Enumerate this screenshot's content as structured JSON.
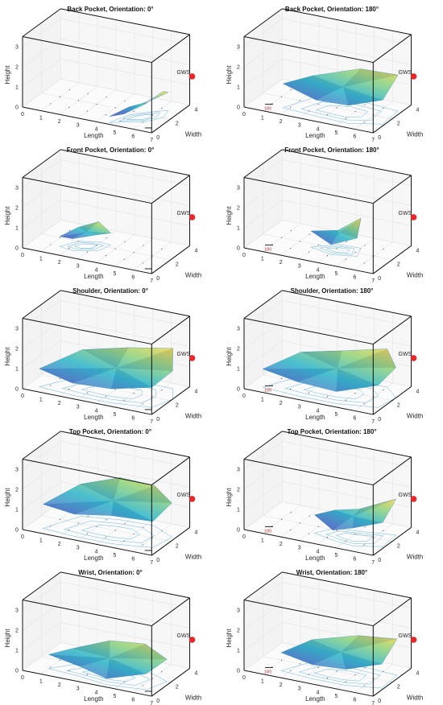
{
  "chart_data": [
    {
      "type": "surface3d",
      "title": "Back Pocket, Orientation: 0°",
      "xlabel": "Length",
      "ylabel": "Width",
      "zlabel": "Height",
      "xlim": [
        0,
        7
      ],
      "ylim": [
        0,
        4
      ],
      "zlim": [
        0,
        3.5
      ],
      "x_ticks": [
        "0",
        "1",
        "2",
        "3",
        "4",
        "5",
        "6",
        "7"
      ],
      "y_ticks": [
        "0",
        "2",
        "4"
      ],
      "z_ticks": [
        "0",
        "1",
        "2",
        "3"
      ],
      "marker": {
        "label": "GWS",
        "x": 7,
        "y": 4,
        "z": 1.5,
        "color": "#e8282b"
      },
      "scale_label": "",
      "surface": [
        {
          "x": 4.6,
          "y": 0.2,
          "z": 0.3
        },
        {
          "x": 5.2,
          "y": 0.6,
          "z": 0.4
        },
        {
          "x": 6.1,
          "y": 1.1,
          "z": 0.9
        },
        {
          "x": 6.6,
          "y": 2.0,
          "z": 1.3
        },
        {
          "x": 6.4,
          "y": 2.9,
          "z": 0.9
        },
        {
          "x": 5.6,
          "y": 2.2,
          "z": 0.5
        },
        {
          "x": 5.0,
          "y": 1.5,
          "z": 0.4
        }
      ]
    },
    {
      "type": "surface3d",
      "title": "Back Pocket, Orientation: 180°",
      "xlabel": "Length",
      "ylabel": "Width",
      "zlabel": "Height",
      "xlim": [
        0,
        7
      ],
      "ylim": [
        0,
        4
      ],
      "zlim": [
        0,
        3.5
      ],
      "x_ticks": [
        "0",
        "1",
        "2",
        "3",
        "4",
        "5",
        "6",
        "7"
      ],
      "y_ticks": [
        "0",
        "2",
        "4"
      ],
      "z_ticks": [
        "0",
        "1",
        "2",
        "3"
      ],
      "marker": {
        "label": "GWS",
        "x": 7,
        "y": 4,
        "z": 1.5,
        "color": "#e8282b"
      },
      "scale_label": "180",
      "surface": [
        {
          "x": 1.7,
          "y": 0.8,
          "z": 1.2
        },
        {
          "x": 3.6,
          "y": 0.6,
          "z": 0.8
        },
        {
          "x": 5.4,
          "y": 0.5,
          "z": 0.9
        },
        {
          "x": 6.9,
          "y": 1.2,
          "z": 1.2
        },
        {
          "x": 6.8,
          "y": 3.0,
          "z": 1.8
        },
        {
          "x": 4.6,
          "y": 3.3,
          "z": 1.6
        },
        {
          "x": 2.4,
          "y": 2.6,
          "z": 1.1
        }
      ]
    },
    {
      "type": "surface3d",
      "title": "Front Pocket, Orientation: 0°",
      "xlabel": "Length",
      "ylabel": "Width",
      "zlabel": "Height",
      "xlim": [
        0,
        7
      ],
      "ylim": [
        0,
        4
      ],
      "zlim": [
        0,
        3.5
      ],
      "x_ticks": [
        "0",
        "1",
        "2",
        "3",
        "4",
        "5",
        "6",
        "7"
      ],
      "y_ticks": [
        "0",
        "2",
        "4"
      ],
      "z_ticks": [
        "0",
        "1",
        "2",
        "3"
      ],
      "marker": {
        "label": "GWS",
        "x": 7,
        "y": 4,
        "z": 1.5,
        "color": "#e8282b"
      },
      "scale_label": "",
      "surface": [
        {
          "x": 1.5,
          "y": 1.0,
          "z": 0.5
        },
        {
          "x": 2.3,
          "y": 0.8,
          "z": 0.6
        },
        {
          "x": 3.4,
          "y": 1.4,
          "z": 0.8
        },
        {
          "x": 3.6,
          "y": 2.3,
          "z": 0.6
        },
        {
          "x": 2.9,
          "y": 2.4,
          "z": 1.0
        },
        {
          "x": 2.0,
          "y": 2.0,
          "z": 0.7
        }
      ]
    },
    {
      "type": "surface3d",
      "title": "Front Pocket, Orientation: 180°",
      "xlabel": "Length",
      "ylabel": "Width",
      "zlabel": "Height",
      "xlim": [
        0,
        7
      ],
      "ylim": [
        0,
        4
      ],
      "zlim": [
        0,
        3.5
      ],
      "x_ticks": [
        "0",
        "1",
        "2",
        "3",
        "4",
        "5",
        "6",
        "7"
      ],
      "y_ticks": [
        "0",
        "2",
        "4"
      ],
      "z_ticks": [
        "0",
        "1",
        "2",
        "3"
      ],
      "marker": {
        "label": "GWS",
        "x": 7,
        "y": 4,
        "z": 1.5,
        "color": "#e8282b"
      },
      "scale_label": "180",
      "surface": [
        {
          "x": 2.8,
          "y": 1.6,
          "z": 0.8
        },
        {
          "x": 4.1,
          "y": 1.2,
          "z": 0.5
        },
        {
          "x": 5.3,
          "y": 1.6,
          "z": 0.9
        },
        {
          "x": 5.0,
          "y": 2.6,
          "z": 1.5
        },
        {
          "x": 3.8,
          "y": 2.5,
          "z": 0.7
        }
      ]
    },
    {
      "type": "surface3d",
      "title": "Shoulder, Orientation: 0°",
      "xlabel": "Length",
      "ylabel": "Width",
      "zlabel": "Height",
      "xlim": [
        0,
        7
      ],
      "ylim": [
        0,
        4
      ],
      "zlim": [
        0,
        3.5
      ],
      "x_ticks": [
        "0",
        "1",
        "2",
        "3",
        "4",
        "5",
        "6",
        "7"
      ],
      "y_ticks": [
        "0",
        "2",
        "4"
      ],
      "z_ticks": [
        "0",
        "1",
        "2",
        "3"
      ],
      "marker": {
        "label": "GWS",
        "x": 7,
        "y": 4,
        "z": 1.5,
        "color": "#e8282b"
      },
      "scale_label": "",
      "surface": [
        {
          "x": 0.6,
          "y": 0.6,
          "z": 0.9
        },
        {
          "x": 2.5,
          "y": 0.4,
          "z": 0.6
        },
        {
          "x": 4.6,
          "y": 0.4,
          "z": 0.7
        },
        {
          "x": 6.6,
          "y": 0.8,
          "z": 1.0
        },
        {
          "x": 7.0,
          "y": 2.2,
          "z": 1.4
        },
        {
          "x": 6.4,
          "y": 3.4,
          "z": 2.0
        },
        {
          "x": 4.0,
          "y": 3.4,
          "z": 1.6
        },
        {
          "x": 1.8,
          "y": 2.8,
          "z": 1.3
        }
      ]
    },
    {
      "type": "surface3d",
      "title": "Shoulder, Orientation: 180°",
      "xlabel": "Length",
      "ylabel": "Width",
      "zlabel": "Height",
      "xlim": [
        0,
        7
      ],
      "ylim": [
        0,
        4
      ],
      "zlim": [
        0,
        3.5
      ],
      "x_ticks": [
        "0",
        "1",
        "2",
        "3",
        "4",
        "5",
        "6",
        "7"
      ],
      "y_ticks": [
        "0",
        "2",
        "4"
      ],
      "z_ticks": [
        "0",
        "1",
        "2",
        "3"
      ],
      "marker": {
        "label": "GWS",
        "x": 7,
        "y": 4,
        "z": 1.5,
        "color": "#e8282b"
      },
      "scale_label": "180",
      "surface": [
        {
          "x": 0.7,
          "y": 0.6,
          "z": 0.9
        },
        {
          "x": 2.7,
          "y": 0.4,
          "z": 0.7
        },
        {
          "x": 4.8,
          "y": 0.4,
          "z": 0.6
        },
        {
          "x": 6.8,
          "y": 0.9,
          "z": 1.1
        },
        {
          "x": 7.0,
          "y": 2.4,
          "z": 1.5
        },
        {
          "x": 6.0,
          "y": 3.4,
          "z": 1.9
        },
        {
          "x": 3.6,
          "y": 3.3,
          "z": 1.4
        },
        {
          "x": 1.7,
          "y": 2.7,
          "z": 1.2
        }
      ]
    },
    {
      "type": "surface3d",
      "title": "Top Pocket, Orientation: 0°",
      "xlabel": "Length",
      "ylabel": "Width",
      "zlabel": "Height",
      "xlim": [
        0,
        7
      ],
      "ylim": [
        0,
        4
      ],
      "zlim": [
        0,
        3.5
      ],
      "x_ticks": [
        "0",
        "1",
        "2",
        "3",
        "4",
        "5",
        "6",
        "7"
      ],
      "y_ticks": [
        "0",
        "2",
        "4"
      ],
      "z_ticks": [
        "0",
        "1",
        "2",
        "3"
      ],
      "marker": {
        "label": "GWS",
        "x": 7,
        "y": 4,
        "z": 1.5,
        "color": "#e8282b"
      },
      "scale_label": "",
      "surface": [
        {
          "x": 0.8,
          "y": 0.6,
          "z": 1.2
        },
        {
          "x": 2.6,
          "y": 0.4,
          "z": 1.1
        },
        {
          "x": 4.6,
          "y": 0.4,
          "z": 1.4
        },
        {
          "x": 6.6,
          "y": 0.9,
          "z": 1.3
        },
        {
          "x": 6.8,
          "y": 2.5,
          "z": 1.7
        },
        {
          "x": 5.4,
          "y": 3.4,
          "z": 2.0
        },
        {
          "x": 3.6,
          "y": 3.3,
          "z": 2.1
        },
        {
          "x": 1.7,
          "y": 2.8,
          "z": 1.6
        }
      ]
    },
    {
      "type": "surface3d",
      "title": "Top Pocket, Orientation: 180°",
      "xlabel": "Length",
      "ylabel": "Width",
      "zlabel": "Height",
      "xlim": [
        0,
        7
      ],
      "ylim": [
        0,
        4
      ],
      "zlim": [
        0,
        3.5
      ],
      "x_ticks": [
        "0",
        "1",
        "2",
        "3",
        "4",
        "5",
        "6",
        "7"
      ],
      "y_ticks": [
        "0",
        "2",
        "4"
      ],
      "z_ticks": [
        "0",
        "1",
        "2",
        "3"
      ],
      "marker": {
        "label": "GWS",
        "x": 7,
        "y": 4,
        "z": 1.5,
        "color": "#e8282b"
      },
      "scale_label": "180",
      "surface": [
        {
          "x": 3.2,
          "y": 1.2,
          "z": 0.9
        },
        {
          "x": 4.4,
          "y": 0.8,
          "z": 0.5
        },
        {
          "x": 5.6,
          "y": 0.6,
          "z": 0.9
        },
        {
          "x": 6.9,
          "y": 1.2,
          "z": 1.2
        },
        {
          "x": 6.8,
          "y": 2.8,
          "z": 1.8
        },
        {
          "x": 5.0,
          "y": 2.4,
          "z": 1.1
        },
        {
          "x": 3.8,
          "y": 2.2,
          "z": 0.9
        }
      ]
    },
    {
      "type": "surface3d",
      "title": "Wrist, Orientation: 0°",
      "xlabel": "Length",
      "ylabel": "Width",
      "zlabel": "Height",
      "xlim": [
        0,
        7
      ],
      "ylim": [
        0,
        4
      ],
      "zlim": [
        0,
        3.5
      ],
      "x_ticks": [
        "0",
        "1",
        "2",
        "3",
        "4",
        "5",
        "6",
        "7"
      ],
      "y_ticks": [
        "0",
        "2",
        "4"
      ],
      "z_ticks": [
        "0",
        "1",
        "2",
        "3"
      ],
      "marker": {
        "label": "GWS",
        "x": 7,
        "y": 4,
        "z": 1.5,
        "color": "#e8282b"
      },
      "scale_label": "",
      "surface": [
        {
          "x": 1.0,
          "y": 0.8,
          "z": 0.7
        },
        {
          "x": 2.8,
          "y": 0.6,
          "z": 0.5
        },
        {
          "x": 4.4,
          "y": 0.3,
          "z": 0.3
        },
        {
          "x": 6.4,
          "y": 0.6,
          "z": 0.8
        },
        {
          "x": 6.8,
          "y": 2.0,
          "z": 1.1
        },
        {
          "x": 5.2,
          "y": 2.8,
          "z": 1.3
        },
        {
          "x": 3.4,
          "y": 2.6,
          "z": 1.2
        },
        {
          "x": 1.8,
          "y": 1.8,
          "z": 0.8
        }
      ]
    },
    {
      "type": "surface3d",
      "title": "Wrist, Orientation: 180°",
      "xlabel": "Length",
      "ylabel": "Width",
      "zlabel": "Height",
      "xlim": [
        0,
        7
      ],
      "ylim": [
        0,
        4
      ],
      "zlim": [
        0,
        3.5
      ],
      "x_ticks": [
        "0",
        "1",
        "2",
        "3",
        "4",
        "5",
        "6",
        "7"
      ],
      "y_ticks": [
        "0",
        "2",
        "4"
      ],
      "z_ticks": [
        "0",
        "1",
        "2",
        "3"
      ],
      "marker": {
        "label": "GWS",
        "x": 7,
        "y": 4,
        "z": 1.5,
        "color": "#e8282b"
      },
      "scale_label": "180",
      "surface": [
        {
          "x": 1.6,
          "y": 0.8,
          "z": 0.9
        },
        {
          "x": 3.4,
          "y": 0.6,
          "z": 0.7
        },
        {
          "x": 5.2,
          "y": 0.6,
          "z": 0.8
        },
        {
          "x": 6.9,
          "y": 1.1,
          "z": 1.2
        },
        {
          "x": 6.8,
          "y": 2.9,
          "z": 1.8
        },
        {
          "x": 4.6,
          "y": 3.1,
          "z": 1.5
        },
        {
          "x": 2.4,
          "y": 2.5,
          "z": 1.1
        }
      ]
    }
  ]
}
